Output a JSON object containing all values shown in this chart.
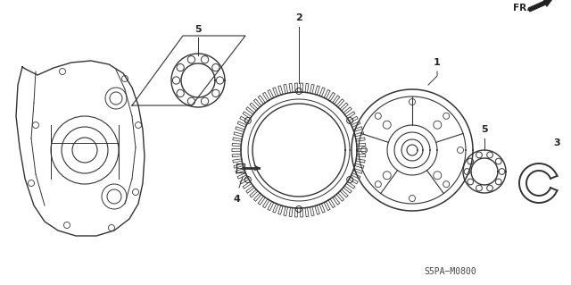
{
  "title": "",
  "background_color": "#ffffff",
  "diagram_code": "S5PA-M0800",
  "fr_label": "FR.",
  "parts": [
    {
      "id": "1",
      "label": "1"
    },
    {
      "id": "2",
      "label": "2"
    },
    {
      "id": "3",
      "label": "3"
    },
    {
      "id": "4",
      "label": "4"
    },
    {
      "id": "5a",
      "label": "5"
    },
    {
      "id": "5b",
      "label": "5"
    }
  ],
  "line_color": "#333333",
  "text_color": "#222222"
}
